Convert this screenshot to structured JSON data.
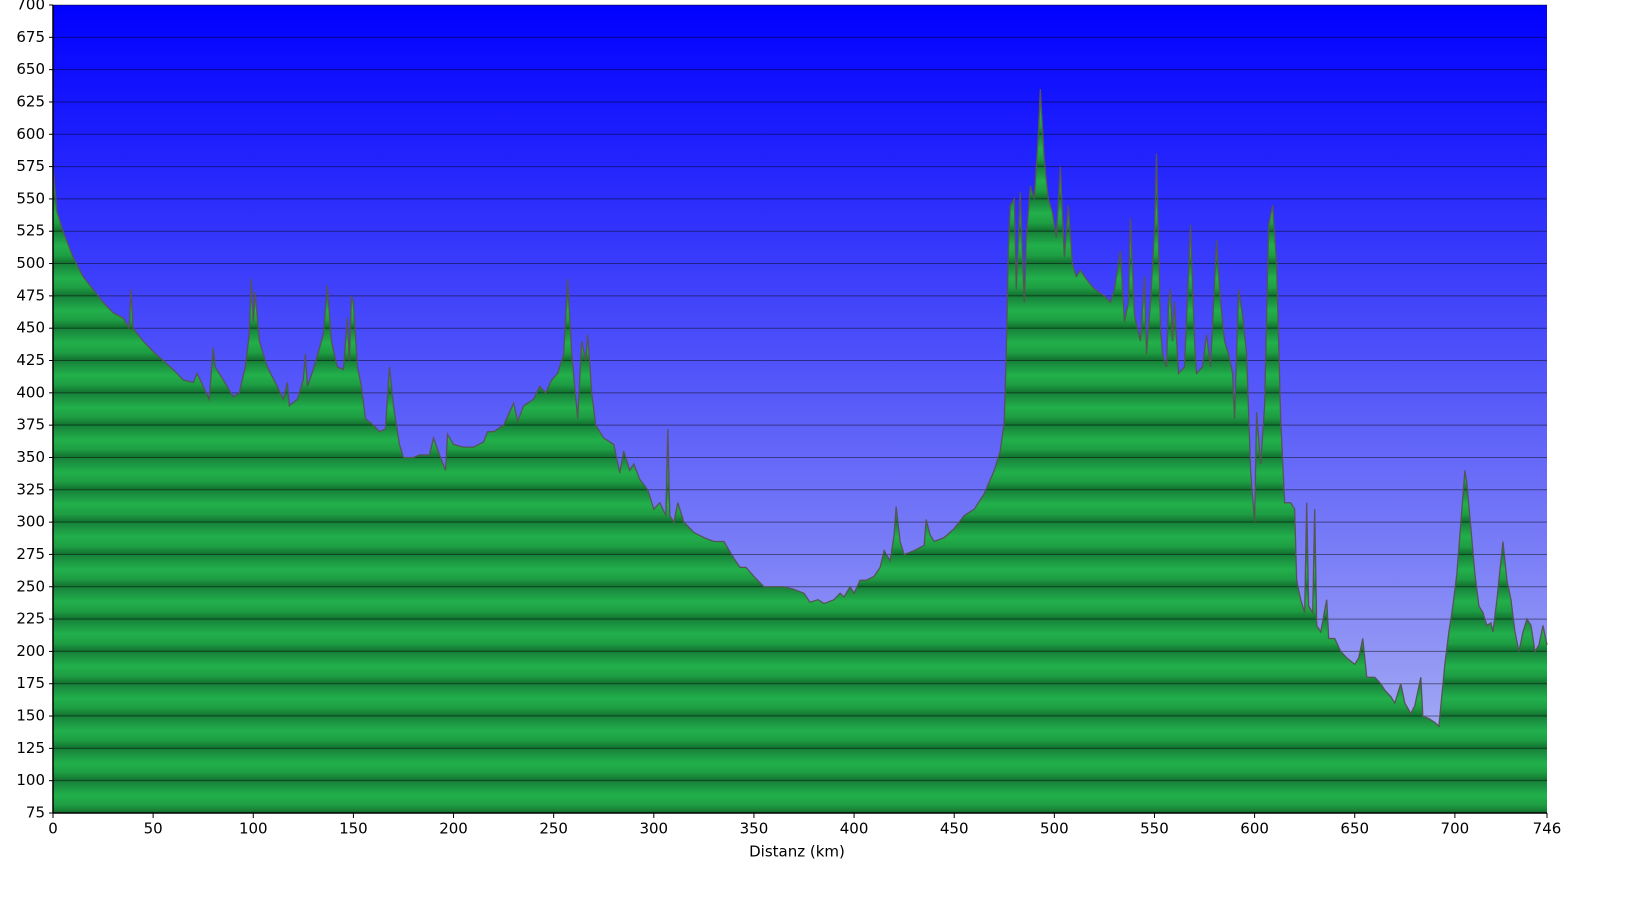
{
  "chart_data": {
    "type": "area",
    "x_label": "Distanz  (km)",
    "xlim": [
      0,
      746
    ],
    "ylim": [
      75,
      700
    ],
    "xticks": [
      0,
      50,
      100,
      150,
      200,
      250,
      300,
      350,
      400,
      450,
      500,
      550,
      600,
      650,
      700,
      746
    ],
    "yticks": [
      75,
      100,
      125,
      150,
      175,
      200,
      225,
      250,
      275,
      300,
      325,
      350,
      375,
      400,
      425,
      450,
      475,
      500,
      525,
      550,
      575,
      600,
      625,
      650,
      675,
      700
    ],
    "grid": true,
    "color": "#1fa845",
    "line_color": "#555555",
    "x": [
      0,
      2,
      5,
      10,
      15,
      20,
      25,
      30,
      35,
      38,
      39,
      40,
      45,
      50,
      55,
      60,
      65,
      70,
      72,
      75,
      78,
      80,
      81,
      85,
      90,
      93,
      96,
      98,
      99,
      100,
      101,
      103,
      107,
      112,
      115,
      117,
      118,
      122,
      125,
      126,
      127,
      130,
      135,
      137,
      139,
      142,
      145,
      147,
      148,
      149,
      150,
      152,
      154,
      156,
      160,
      163,
      166,
      168,
      170,
      173,
      175,
      180,
      183,
      188,
      190,
      193,
      196,
      197,
      200,
      205,
      210,
      215,
      217,
      220,
      225,
      228,
      230,
      232,
      235,
      240,
      243,
      246,
      249,
      252,
      255,
      257,
      259,
      262,
      264,
      266,
      267,
      269,
      271,
      275,
      280,
      283,
      285,
      288,
      290,
      293,
      297,
      300,
      303,
      306,
      307,
      308,
      310,
      312,
      315,
      320,
      325,
      330,
      335,
      340,
      343,
      346,
      350,
      355,
      360,
      365,
      370,
      375,
      378,
      382,
      385,
      390,
      393,
      395,
      398,
      400,
      403,
      406,
      410,
      413,
      415,
      418,
      420,
      421,
      423,
      425,
      430,
      435,
      436,
      438,
      440,
      445,
      450,
      455,
      460,
      465,
      470,
      473,
      475,
      476,
      477,
      478,
      480,
      481,
      483,
      485,
      486,
      488,
      490,
      492,
      493,
      495,
      497,
      499,
      501,
      503,
      505,
      507,
      509,
      511,
      513,
      516,
      519,
      522,
      525,
      528,
      530,
      533,
      535,
      537,
      538,
      540,
      543,
      545,
      546,
      548,
      550,
      551,
      553,
      554,
      556,
      557,
      558,
      559,
      560,
      562,
      565,
      568,
      570,
      571,
      574,
      576,
      578,
      581,
      583,
      585,
      587,
      589,
      590,
      592,
      594,
      596,
      598,
      600,
      601,
      603,
      605,
      607,
      609,
      611,
      613,
      615,
      618,
      620,
      621,
      623,
      625,
      626,
      627,
      629,
      630,
      631,
      633,
      636,
      637,
      640,
      643,
      646,
      650,
      652,
      654,
      656,
      660,
      663,
      665,
      668,
      670,
      673,
      675,
      678,
      680,
      683,
      684,
      687,
      690,
      692,
      695,
      697,
      699,
      701,
      703,
      705,
      706,
      708,
      710,
      712,
      714,
      716,
      718,
      719,
      721,
      723,
      724,
      726,
      728,
      730,
      732,
      734,
      736,
      738,
      740,
      742,
      744,
      746
    ],
    "values": [
      575,
      540,
      525,
      505,
      490,
      480,
      470,
      462,
      458,
      450,
      480,
      450,
      440,
      432,
      425,
      418,
      410,
      408,
      415,
      405,
      395,
      435,
      420,
      410,
      397,
      400,
      420,
      445,
      488,
      455,
      478,
      440,
      420,
      405,
      395,
      408,
      390,
      395,
      410,
      430,
      405,
      418,
      445,
      483,
      440,
      420,
      418,
      458,
      425,
      475,
      470,
      420,
      405,
      380,
      375,
      370,
      372,
      420,
      390,
      360,
      350,
      350,
      352,
      352,
      365,
      352,
      340,
      368,
      360,
      358,
      358,
      362,
      370,
      370,
      375,
      385,
      392,
      378,
      390,
      395,
      405,
      400,
      410,
      415,
      430,
      488,
      430,
      380,
      440,
      425,
      445,
      400,
      375,
      365,
      360,
      338,
      355,
      340,
      345,
      333,
      325,
      310,
      315,
      305,
      372,
      305,
      300,
      315,
      300,
      292,
      288,
      285,
      285,
      272,
      265,
      265,
      258,
      250,
      250,
      250,
      248,
      245,
      238,
      240,
      237,
      240,
      245,
      242,
      250,
      245,
      255,
      255,
      258,
      265,
      278,
      270,
      290,
      312,
      285,
      275,
      278,
      282,
      302,
      290,
      285,
      288,
      295,
      305,
      310,
      322,
      340,
      355,
      378,
      430,
      510,
      545,
      550,
      480,
      555,
      470,
      520,
      560,
      550,
      600,
      635,
      580,
      550,
      540,
      520,
      575,
      505,
      545,
      500,
      490,
      495,
      488,
      482,
      478,
      475,
      470,
      480,
      510,
      455,
      470,
      535,
      460,
      440,
      490,
      430,
      470,
      525,
      585,
      450,
      430,
      420,
      470,
      480,
      440,
      470,
      415,
      420,
      530,
      440,
      415,
      420,
      445,
      420,
      518,
      470,
      440,
      430,
      415,
      380,
      480,
      460,
      430,
      340,
      300,
      385,
      345,
      390,
      530,
      545,
      500,
      380,
      315,
      315,
      310,
      255,
      240,
      230,
      315,
      235,
      230,
      310,
      220,
      215,
      240,
      210,
      210,
      200,
      195,
      190,
      195,
      210,
      180,
      180,
      175,
      170,
      165,
      160,
      175,
      160,
      152,
      158,
      180,
      150,
      148,
      145,
      142,
      190,
      215,
      235,
      260,
      300,
      340,
      330,
      295,
      260,
      235,
      230,
      220,
      222,
      215,
      240,
      270,
      285,
      255,
      240,
      215,
      200,
      215,
      225,
      220,
      200,
      205,
      220,
      205
    ]
  }
}
